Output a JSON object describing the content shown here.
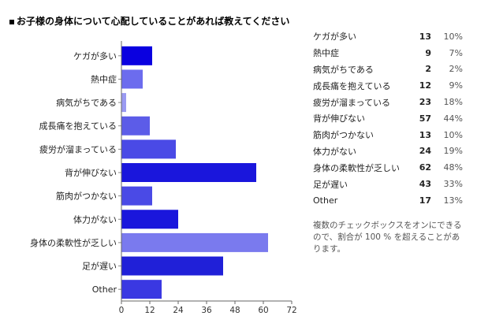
{
  "title": "お子様の身体について心配していることがあれば教えてください",
  "chart_data": {
    "type": "bar",
    "orientation": "horizontal",
    "categories": [
      "ケガが多い",
      "熱中症",
      "病気がちである",
      "成長痛を抱えている",
      "疲労が溜まっている",
      "背が伸びない",
      "筋肉がつかない",
      "体力がない",
      "身体の柔軟性が乏しい",
      "足が遅い",
      "Other"
    ],
    "values": [
      13,
      9,
      2,
      12,
      23,
      57,
      13,
      24,
      62,
      43,
      17
    ],
    "colors": [
      "#0a00e0",
      "#6c6cee",
      "#9a9af2",
      "#5c5ce8",
      "#4a4ae6",
      "#1a16dc",
      "#4a4ae6",
      "#1a16dc",
      "#7a7aee",
      "#2020d8",
      "#3a38e2"
    ],
    "xlim": [
      0,
      72
    ],
    "xticks": [
      0,
      12,
      24,
      36,
      48,
      60,
      72
    ],
    "grid": false
  },
  "stats": {
    "rows": [
      {
        "label": "ケガが多い",
        "count": "13",
        "percent": "10%"
      },
      {
        "label": "熱中症",
        "count": "9",
        "percent": "7%"
      },
      {
        "label": "病気がちである",
        "count": "2",
        "percent": "2%"
      },
      {
        "label": "成長痛を抱えている",
        "count": "12",
        "percent": "9%"
      },
      {
        "label": "疲労が溜まっている",
        "count": "23",
        "percent": "18%"
      },
      {
        "label": "背が伸びない",
        "count": "57",
        "percent": "44%"
      },
      {
        "label": "筋肉がつかない",
        "count": "13",
        "percent": "10%"
      },
      {
        "label": "体力がない",
        "count": "24",
        "percent": "19%"
      },
      {
        "label": "身体の柔軟性が乏しい",
        "count": "62",
        "percent": "48%"
      },
      {
        "label": "足が遅い",
        "count": "43",
        "percent": "33%"
      },
      {
        "label": "Other",
        "count": "17",
        "percent": "13%"
      }
    ]
  },
  "note": "複数のチェックボックスをオンにできるので、割合が 100 % を超えることがあります。"
}
